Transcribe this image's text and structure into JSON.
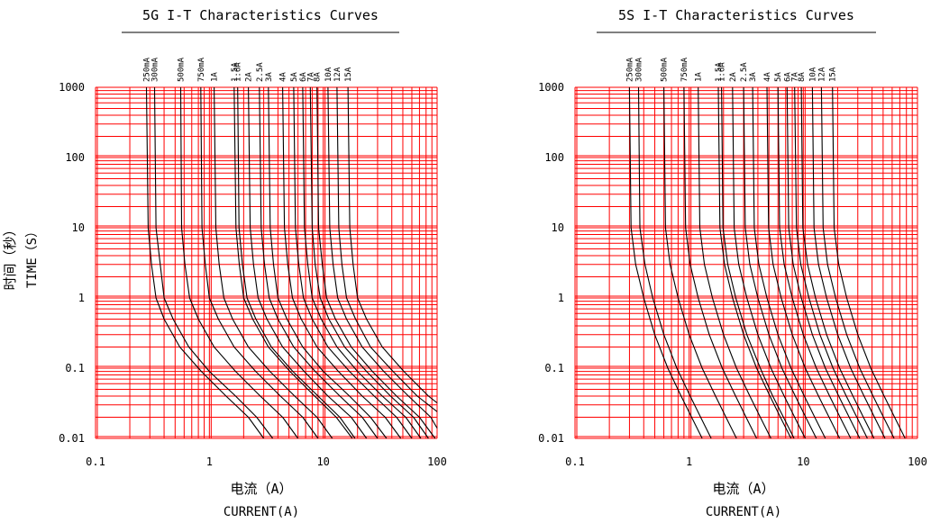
{
  "chart_data": [
    {
      "type": "line",
      "title": "5G I-T Characteristics Curves",
      "xlabel_cn": "电流（A）",
      "xlabel": "CURRENT(A)",
      "ylabel_cn": "时间（秒）",
      "ylabel": "TIME（S）",
      "x_scale": "log",
      "y_scale": "log",
      "xlim": [
        0.1,
        100
      ],
      "ylim": [
        0.01,
        1000
      ],
      "x_ticks": [
        "0.1",
        "1",
        "10",
        "100"
      ],
      "y_ticks": [
        "0.01",
        "0.1",
        "1",
        "10",
        "100",
        "1000"
      ],
      "grid": true,
      "series": [
        {
          "name": "250mA",
          "rating": 0.25,
          "x": [
            0.28,
            0.29,
            0.31,
            0.34,
            0.4,
            0.55,
            0.85,
            1.4,
            2.2,
            3.0
          ],
          "y": [
            1000,
            10,
            3,
            1,
            0.5,
            0.2,
            0.09,
            0.04,
            0.02,
            0.01
          ]
        },
        {
          "name": "300mA",
          "rating": 0.3,
          "x": [
            0.33,
            0.34,
            0.37,
            0.4,
            0.48,
            0.66,
            1.0,
            1.7,
            2.6,
            3.6
          ],
          "y": [
            1000,
            10,
            3,
            1,
            0.5,
            0.2,
            0.09,
            0.04,
            0.02,
            0.01
          ]
        },
        {
          "name": "500mA",
          "rating": 0.5,
          "x": [
            0.56,
            0.57,
            0.61,
            0.67,
            0.8,
            1.1,
            1.7,
            2.8,
            4.4,
            6.0
          ],
          "y": [
            1000,
            10,
            3,
            1,
            0.5,
            0.2,
            0.09,
            0.04,
            0.02,
            0.01
          ]
        },
        {
          "name": "750mA",
          "rating": 0.75,
          "x": [
            0.84,
            0.86,
            0.92,
            1.0,
            1.2,
            1.65,
            2.55,
            4.2,
            6.6,
            9.0
          ],
          "y": [
            1000,
            10,
            3,
            1,
            0.5,
            0.2,
            0.09,
            0.04,
            0.02,
            0.01
          ]
        },
        {
          "name": "1A",
          "rating": 1.0,
          "x": [
            1.1,
            1.14,
            1.22,
            1.34,
            1.6,
            2.2,
            3.4,
            5.6,
            8.8,
            12
          ],
          "y": [
            1000,
            10,
            3,
            1,
            0.5,
            0.2,
            0.09,
            0.04,
            0.02,
            0.01
          ]
        },
        {
          "name": "1.5A",
          "rating": 1.5,
          "x": [
            1.65,
            1.71,
            1.83,
            2.0,
            2.4,
            3.3,
            5.1,
            8.4,
            13,
            18
          ],
          "y": [
            1000,
            10,
            3,
            1,
            0.5,
            0.2,
            0.09,
            0.04,
            0.02,
            0.01
          ]
        },
        {
          "name": "1.6A",
          "rating": 1.6,
          "x": [
            1.77,
            1.82,
            1.95,
            2.14,
            2.56,
            3.5,
            5.4,
            9.0,
            14,
            19
          ],
          "y": [
            1000,
            10,
            3,
            1,
            0.5,
            0.2,
            0.09,
            0.04,
            0.02,
            0.01
          ]
        },
        {
          "name": "2A",
          "rating": 2.0,
          "x": [
            2.2,
            2.28,
            2.44,
            2.68,
            3.2,
            4.4,
            6.8,
            11,
            17.6,
            24
          ],
          "y": [
            1000,
            10,
            3,
            1,
            0.5,
            0.2,
            0.09,
            0.04,
            0.02,
            0.01
          ]
        },
        {
          "name": "2.5A",
          "rating": 2.5,
          "x": [
            2.75,
            2.85,
            3.05,
            3.35,
            4.0,
            5.5,
            8.5,
            14,
            22,
            30
          ],
          "y": [
            1000,
            10,
            3,
            1,
            0.5,
            0.2,
            0.09,
            0.04,
            0.02,
            0.01
          ]
        },
        {
          "name": "3A",
          "rating": 3.0,
          "x": [
            3.3,
            3.42,
            3.66,
            4.0,
            4.8,
            6.6,
            10,
            17,
            26,
            36
          ],
          "y": [
            1000,
            10,
            3,
            1,
            0.5,
            0.2,
            0.09,
            0.04,
            0.02,
            0.01
          ]
        },
        {
          "name": "4A",
          "rating": 4.0,
          "x": [
            4.4,
            4.56,
            4.88,
            5.36,
            6.4,
            8.8,
            13.6,
            22,
            35,
            48
          ],
          "y": [
            1000,
            10,
            3,
            1,
            0.5,
            0.2,
            0.09,
            0.04,
            0.02,
            0.01
          ]
        },
        {
          "name": "5A",
          "rating": 5.0,
          "x": [
            5.5,
            5.7,
            6.1,
            6.7,
            8.0,
            11,
            17,
            28,
            44,
            60
          ],
          "y": [
            1000,
            10,
            3,
            1,
            0.5,
            0.2,
            0.09,
            0.04,
            0.02,
            0.01
          ]
        },
        {
          "name": "6A",
          "rating": 6.0,
          "x": [
            6.6,
            6.84,
            7.32,
            8.0,
            9.6,
            13.2,
            20,
            33,
            53,
            72
          ],
          "y": [
            1000,
            10,
            3,
            1,
            0.5,
            0.2,
            0.09,
            0.04,
            0.02,
            0.01
          ]
        },
        {
          "name": "7A",
          "rating": 7.0,
          "x": [
            7.7,
            8.0,
            8.5,
            9.4,
            11.2,
            15.4,
            24,
            39,
            62,
            84
          ],
          "y": [
            1000,
            10,
            3,
            1,
            0.5,
            0.2,
            0.09,
            0.04,
            0.02,
            0.01
          ]
        },
        {
          "name": "8A",
          "rating": 8.0,
          "x": [
            8.8,
            9.1,
            9.8,
            10.7,
            12.8,
            17.6,
            27,
            44,
            70,
            96
          ],
          "y": [
            1000,
            10,
            3,
            1,
            0.5,
            0.2,
            0.09,
            0.04,
            0.02,
            0.01
          ]
        },
        {
          "name": "10A",
          "rating": 10.0,
          "x": [
            11,
            11.4,
            12.2,
            13.4,
            16,
            22,
            34,
            56,
            88,
            100
          ],
          "y": [
            1000,
            10,
            3,
            1,
            0.5,
            0.2,
            0.09,
            0.04,
            0.02,
            0.014
          ]
        },
        {
          "name": "12A",
          "rating": 12.0,
          "x": [
            13.2,
            13.7,
            14.6,
            16,
            19.2,
            26,
            41,
            67,
            100
          ],
          "y": [
            1000,
            10,
            3,
            1,
            0.5,
            0.2,
            0.09,
            0.04,
            0.024
          ]
        },
        {
          "name": "15A",
          "rating": 15.0,
          "x": [
            16.5,
            17.1,
            18.3,
            20,
            24,
            33,
            51,
            84,
            100
          ],
          "y": [
            1000,
            10,
            3,
            1,
            0.5,
            0.2,
            0.09,
            0.04,
            0.032
          ]
        }
      ]
    },
    {
      "type": "line",
      "title": "5S I-T Characteristics Curves",
      "xlabel_cn": "电流（A）",
      "xlabel": "CURRENT(A)",
      "x_scale": "log",
      "y_scale": "log",
      "xlim": [
        0.1,
        100
      ],
      "ylim": [
        0.01,
        1000
      ],
      "x_ticks": [
        "0.1",
        "1",
        "10",
        "100"
      ],
      "y_ticks": [
        "0.01",
        "0.1",
        "1",
        "10",
        "100",
        "1000"
      ],
      "grid": true,
      "series": [
        {
          "name": "250mA",
          "rating": 0.25,
          "x": [
            0.3,
            0.31,
            0.34,
            0.4,
            0.5,
            0.65,
            0.85,
            1.05,
            1.3
          ],
          "y": [
            1000,
            10,
            3,
            1,
            0.3,
            0.1,
            0.04,
            0.02,
            0.01
          ]
        },
        {
          "name": "300mA",
          "rating": 0.3,
          "x": [
            0.36,
            0.37,
            0.41,
            0.48,
            0.6,
            0.78,
            1.02,
            1.26,
            1.56
          ],
          "y": [
            1000,
            10,
            3,
            1,
            0.3,
            0.1,
            0.04,
            0.02,
            0.01
          ]
        },
        {
          "name": "500mA",
          "rating": 0.5,
          "x": [
            0.6,
            0.62,
            0.68,
            0.8,
            1.0,
            1.3,
            1.7,
            2.1,
            2.6
          ],
          "y": [
            1000,
            10,
            3,
            1,
            0.3,
            0.1,
            0.04,
            0.02,
            0.01
          ]
        },
        {
          "name": "750mA",
          "rating": 0.75,
          "x": [
            0.9,
            0.93,
            1.02,
            1.2,
            1.5,
            1.95,
            2.55,
            3.15,
            3.9
          ],
          "y": [
            1000,
            10,
            3,
            1,
            0.3,
            0.1,
            0.04,
            0.02,
            0.01
          ]
        },
        {
          "name": "1A",
          "rating": 1.0,
          "x": [
            1.2,
            1.24,
            1.36,
            1.6,
            2.0,
            2.6,
            3.4,
            4.2,
            5.2
          ],
          "y": [
            1000,
            10,
            3,
            1,
            0.3,
            0.1,
            0.04,
            0.02,
            0.01
          ]
        },
        {
          "name": "1.5A",
          "rating": 1.5,
          "x": [
            1.8,
            1.86,
            2.04,
            2.4,
            3.0,
            3.9,
            5.1,
            6.3,
            7.8
          ],
          "y": [
            1000,
            10,
            3,
            1,
            0.3,
            0.1,
            0.04,
            0.02,
            0.01
          ]
        },
        {
          "name": "1.6A",
          "rating": 1.6,
          "x": [
            1.92,
            1.98,
            2.18,
            2.56,
            3.2,
            4.2,
            5.4,
            6.7,
            8.3
          ],
          "y": [
            1000,
            10,
            3,
            1,
            0.3,
            0.1,
            0.04,
            0.02,
            0.01
          ]
        },
        {
          "name": "2A",
          "rating": 2.0,
          "x": [
            2.4,
            2.48,
            2.72,
            3.2,
            4.0,
            5.2,
            6.8,
            8.4,
            10.4
          ],
          "y": [
            1000,
            10,
            3,
            1,
            0.3,
            0.1,
            0.04,
            0.02,
            0.01
          ]
        },
        {
          "name": "2.5A",
          "rating": 2.5,
          "x": [
            3.0,
            3.1,
            3.4,
            4.0,
            5.0,
            6.5,
            8.5,
            10.5,
            13
          ],
          "y": [
            1000,
            10,
            3,
            1,
            0.3,
            0.1,
            0.04,
            0.02,
            0.01
          ]
        },
        {
          "name": "3A",
          "rating": 3.0,
          "x": [
            3.6,
            3.72,
            4.08,
            4.8,
            6.0,
            7.8,
            10.2,
            12.6,
            15.6
          ],
          "y": [
            1000,
            10,
            3,
            1,
            0.3,
            0.1,
            0.04,
            0.02,
            0.01
          ]
        },
        {
          "name": "4A",
          "rating": 4.0,
          "x": [
            4.8,
            4.96,
            5.44,
            6.4,
            8.0,
            10.4,
            13.6,
            16.8,
            20.8
          ],
          "y": [
            1000,
            10,
            3,
            1,
            0.3,
            0.1,
            0.04,
            0.02,
            0.01
          ]
        },
        {
          "name": "5A",
          "rating": 5.0,
          "x": [
            6.0,
            6.2,
            6.8,
            8.0,
            10,
            13,
            17,
            21,
            26
          ],
          "y": [
            1000,
            10,
            3,
            1,
            0.3,
            0.1,
            0.04,
            0.02,
            0.01
          ]
        },
        {
          "name": "6A",
          "rating": 6.0,
          "x": [
            7.2,
            7.44,
            8.16,
            9.6,
            12,
            15.6,
            20.4,
            25.2,
            31.2
          ],
          "y": [
            1000,
            10,
            3,
            1,
            0.3,
            0.1,
            0.04,
            0.02,
            0.01
          ]
        },
        {
          "name": "7A",
          "rating": 7.0,
          "x": [
            8.4,
            8.7,
            9.5,
            11.2,
            14,
            18.2,
            23.8,
            29.4,
            36.4
          ],
          "y": [
            1000,
            10,
            3,
            1,
            0.3,
            0.1,
            0.04,
            0.02,
            0.01
          ]
        },
        {
          "name": "8A",
          "rating": 8.0,
          "x": [
            9.6,
            9.9,
            10.9,
            12.8,
            16,
            20.8,
            27.2,
            33.6,
            41.6
          ],
          "y": [
            1000,
            10,
            3,
            1,
            0.3,
            0.1,
            0.04,
            0.02,
            0.01
          ]
        },
        {
          "name": "10A",
          "rating": 10.0,
          "x": [
            12,
            12.4,
            13.6,
            16,
            20,
            26,
            34,
            42,
            52
          ],
          "y": [
            1000,
            10,
            3,
            1,
            0.3,
            0.1,
            0.04,
            0.02,
            0.01
          ]
        },
        {
          "name": "12A",
          "rating": 12.0,
          "x": [
            14.4,
            14.9,
            16.3,
            19.2,
            24,
            31.2,
            40.8,
            50.4,
            62.4
          ],
          "y": [
            1000,
            10,
            3,
            1,
            0.3,
            0.1,
            0.04,
            0.02,
            0.01
          ]
        },
        {
          "name": "15A",
          "rating": 15.0,
          "x": [
            18,
            18.6,
            20.4,
            24,
            30,
            39,
            51,
            63,
            78
          ],
          "y": [
            1000,
            10,
            3,
            1,
            0.3,
            0.1,
            0.04,
            0.02,
            0.01
          ]
        }
      ]
    }
  ],
  "colors": {
    "grid": "#ff0000",
    "curve": "#000000",
    "text": "#000000",
    "background": "#ffffff"
  }
}
